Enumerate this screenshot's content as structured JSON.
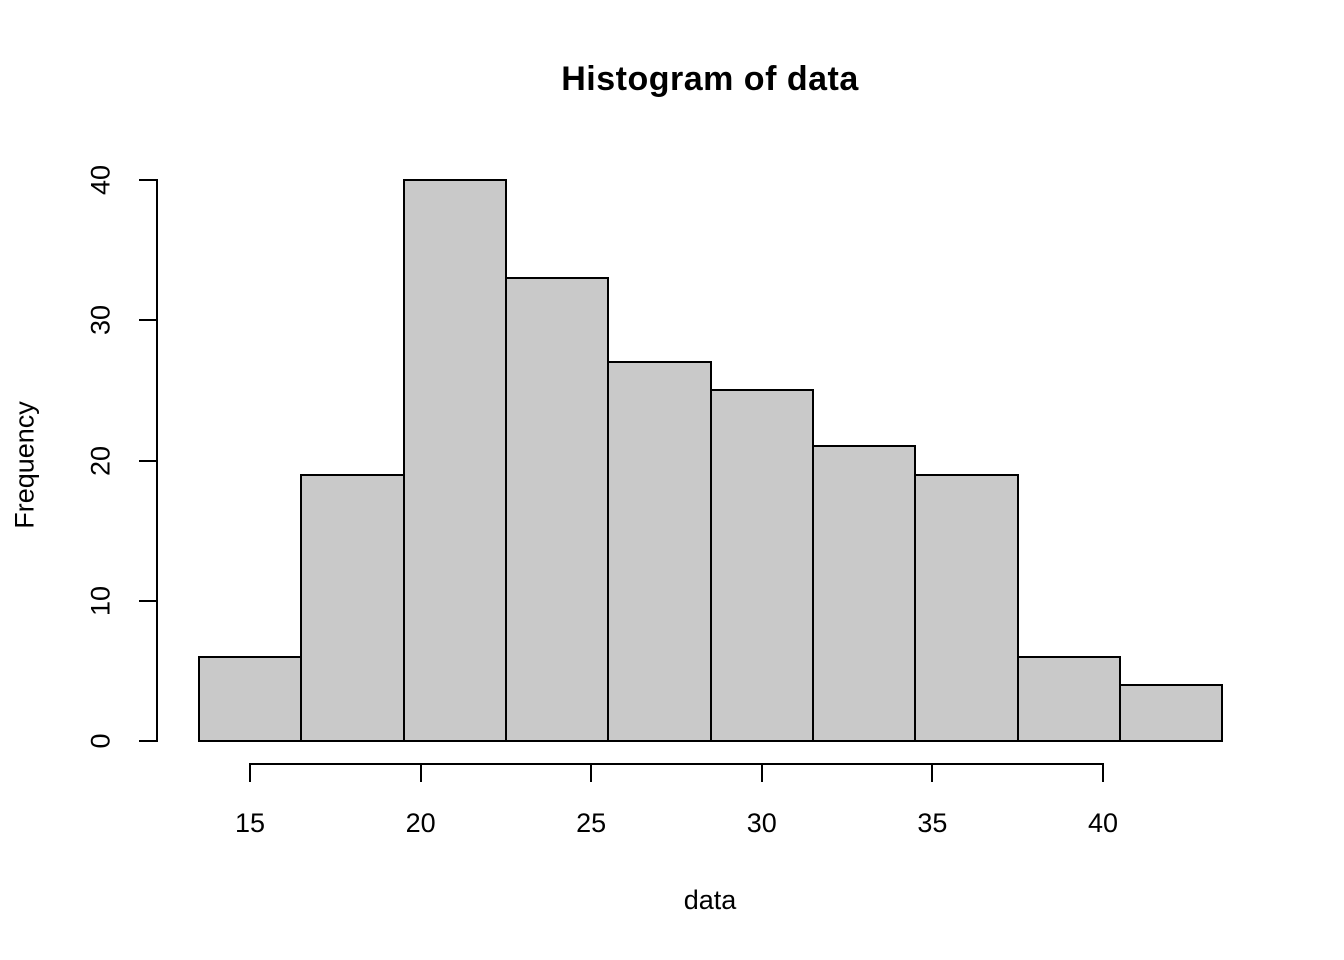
{
  "figure": {
    "background": "#FFFFFF",
    "text_color": "#000000"
  },
  "chart_data": {
    "type": "bar",
    "subtype": "histogram",
    "title": "Histogram of data",
    "xlabel": "data",
    "ylabel": "Frequency",
    "bin_edges": [
      13.5,
      16.5,
      19.5,
      22.5,
      25.5,
      28.5,
      31.5,
      34.5,
      37.5,
      40.5,
      43.5
    ],
    "counts": [
      6,
      19,
      40,
      33,
      27,
      25,
      21,
      19,
      6,
      4
    ],
    "x_ticks": [
      15,
      20,
      25,
      30,
      35,
      40
    ],
    "y_ticks": [
      0,
      10,
      20,
      30,
      40
    ],
    "xlim": [
      12.3,
      44.7
    ],
    "ylim": [
      0,
      40
    ],
    "grid": false,
    "legend": false,
    "bar_fill": "#C9C9C9",
    "bar_border": "#000000",
    "axis_color": "#000000"
  }
}
